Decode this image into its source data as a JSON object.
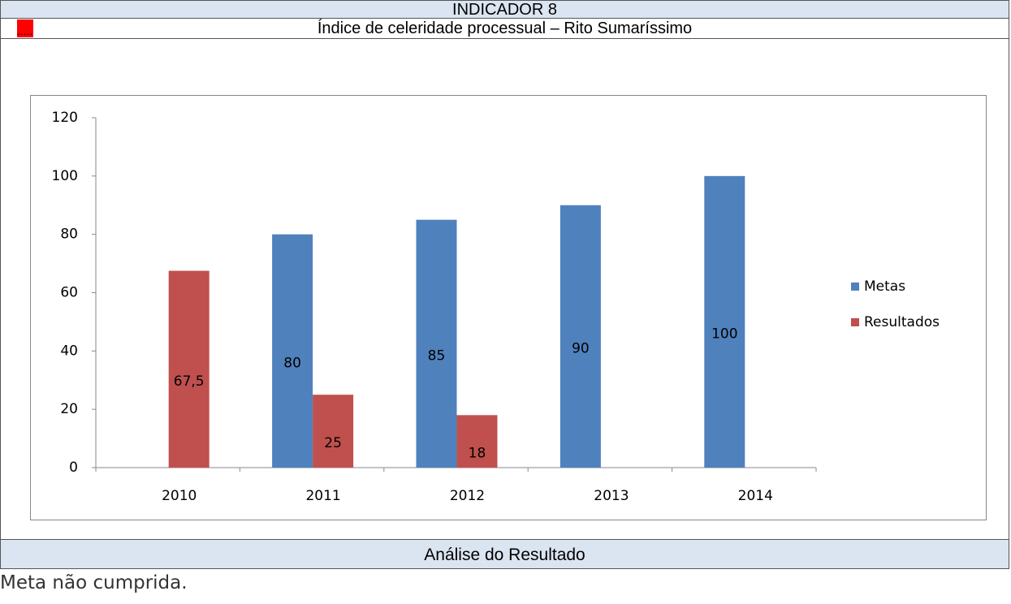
{
  "header": {
    "title": "INDICADOR 8",
    "flag": ".....",
    "subtitle": "Índice de celeridade processual – Rito Sumaríssimo"
  },
  "chart_data": {
    "type": "bar",
    "categories": [
      "2010",
      "2011",
      "2012",
      "2013",
      "2014"
    ],
    "series": [
      {
        "name": "Metas",
        "color": "#4f81bd",
        "values": [
          null,
          80,
          85,
          90,
          100
        ]
      },
      {
        "name": "Resultados",
        "color": "#c0504d",
        "values": [
          67.5,
          25,
          18,
          null,
          null
        ],
        "value_labels": [
          "67,5",
          "25",
          "18",
          null,
          null
        ]
      }
    ],
    "ylim": [
      0,
      120
    ],
    "yticks": [
      0,
      20,
      40,
      60,
      80,
      100,
      120
    ],
    "legend": "right"
  },
  "analysis": {
    "title": "Análise do Resultado",
    "text": "Meta não cumprida."
  }
}
